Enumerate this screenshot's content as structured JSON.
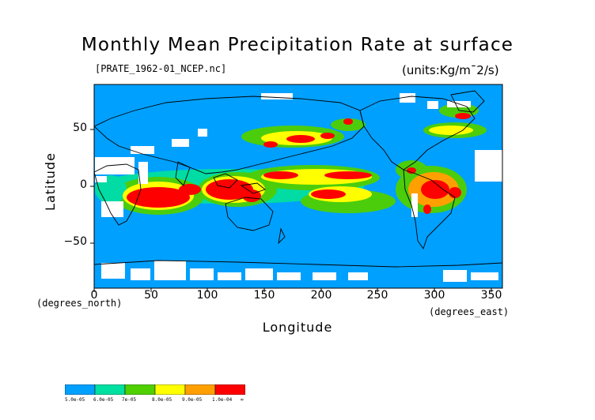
{
  "title": "Monthly Mean Precipitation Rate at surface",
  "source_label": "[PRATE_1962-01_NCEP.nc]",
  "units_label": "(units:Kg/m¯2/s)",
  "y_axis": {
    "label": "Latitude",
    "unit_label": "(degrees_north)",
    "ticks": [
      "50",
      "0",
      "−50"
    ],
    "range": [
      -90,
      90
    ]
  },
  "x_axis": {
    "label": "Longitude",
    "unit_label": "(degrees_east)",
    "ticks": [
      "0",
      "50",
      "100",
      "150",
      "200",
      "250",
      "300",
      "350"
    ],
    "range": [
      0,
      360
    ]
  },
  "colorbar": {
    "labels": [
      "5.0e-05",
      "6.0e-05",
      "7e-05",
      "8.0e-05",
      "9.0e-05",
      "1.0e-04",
      "∞"
    ],
    "colors": [
      "#00a0ff",
      "#00e0a0",
      "#50d000",
      "#ffff00",
      "#ffa000",
      "#ff0000"
    ]
  },
  "colors": {
    "ocean": "#00a0ff",
    "land_line": "#000000",
    "missing": "#ffffff"
  }
}
